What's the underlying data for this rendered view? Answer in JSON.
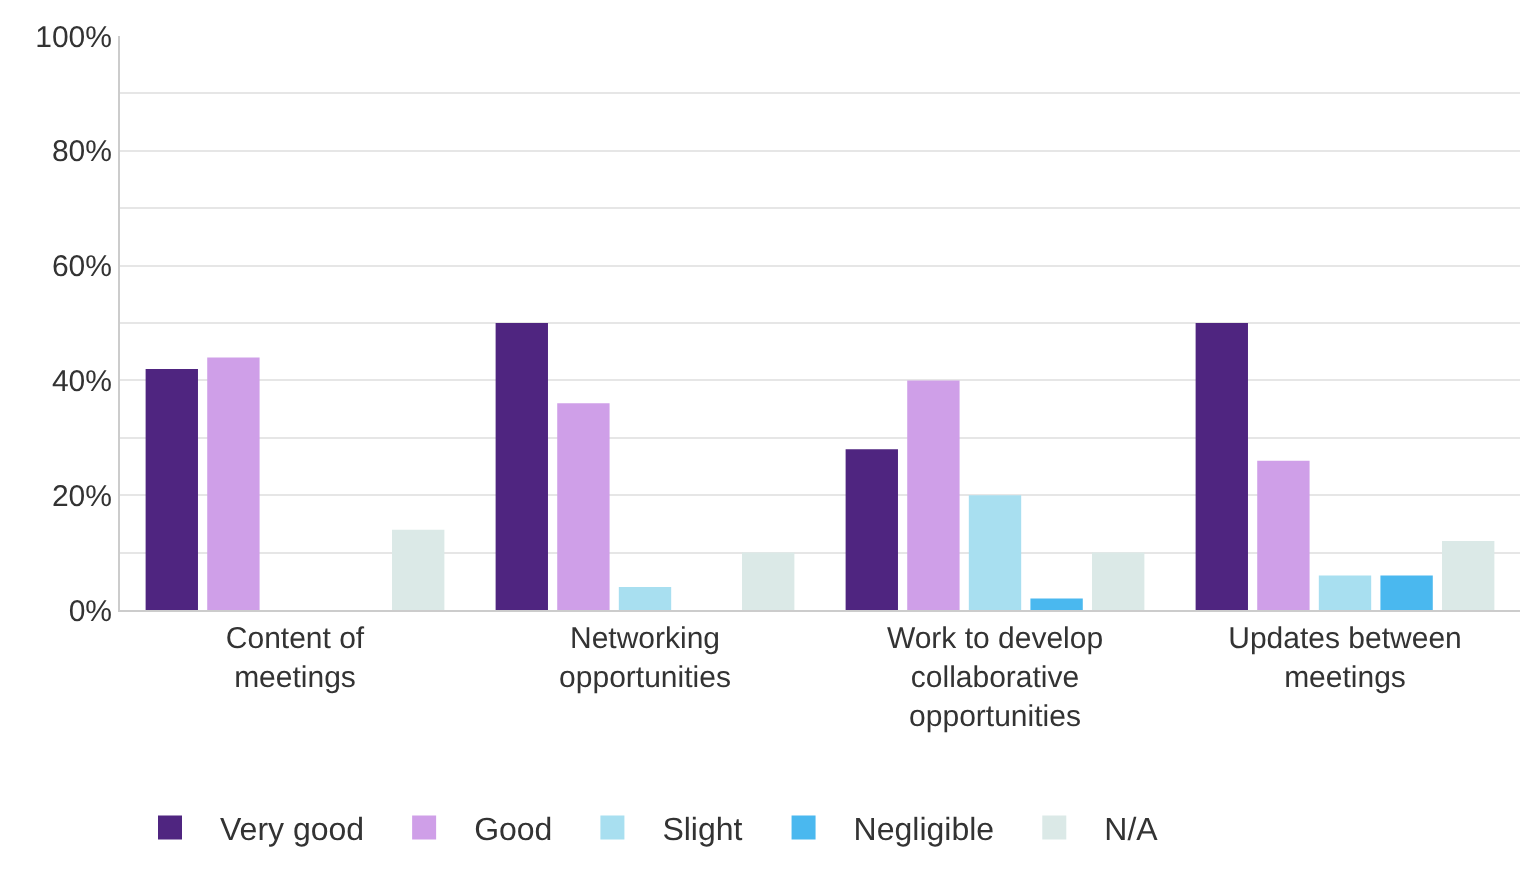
{
  "chart_data": {
    "type": "bar",
    "categories": [
      "Content of\nmeetings",
      "Networking\nopportunities",
      "Work to develop\ncollaborative\nopportunities",
      "Updates between\nmeetings"
    ],
    "series": [
      {
        "name": "Very good",
        "color": "#4f2580",
        "values": [
          42,
          50,
          28,
          50
        ]
      },
      {
        "name": "Good",
        "color": "#cf9fe8",
        "values": [
          44,
          36,
          40,
          26
        ]
      },
      {
        "name": "Slight",
        "color": "#a8dff0",
        "values": [
          null,
          4,
          20,
          6
        ]
      },
      {
        "name": "Negligible",
        "color": "#4ab8ef",
        "values": [
          null,
          null,
          2,
          6
        ]
      },
      {
        "name": "N/A",
        "color": "#dbe9e7",
        "values": [
          14,
          10,
          10,
          12
        ]
      }
    ],
    "ylim": [
      0,
      100
    ],
    "yticks": [
      {
        "value": 0,
        "label": "0%"
      },
      {
        "value": 10,
        "label": null
      },
      {
        "value": 20,
        "label": "20%"
      },
      {
        "value": 30,
        "label": null
      },
      {
        "value": 40,
        "label": "40%"
      },
      {
        "value": 50,
        "label": null
      },
      {
        "value": 60,
        "label": "60%"
      },
      {
        "value": 70,
        "label": null
      },
      {
        "value": 80,
        "label": "80%"
      },
      {
        "value": 90,
        "label": null
      },
      {
        "value": 100,
        "label": "100%"
      }
    ],
    "grid": "y",
    "legend": "bottom left"
  }
}
